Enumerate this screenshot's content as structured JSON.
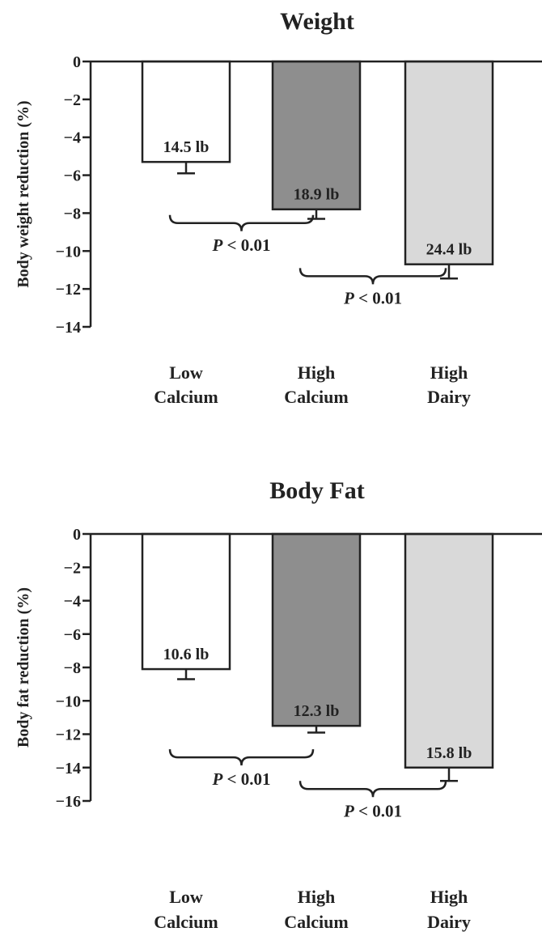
{
  "chart_data": [
    {
      "type": "bar",
      "title": "Weight",
      "ylabel": "Body weight reduction (%)",
      "ylim": [
        -14,
        0
      ],
      "yticks": [
        0,
        -2,
        -4,
        -6,
        -8,
        -10,
        -12,
        -14
      ],
      "ytick_labels": [
        "0",
        "−2",
        "−4",
        "−6",
        "−8",
        "−10",
        "−12",
        "−14"
      ],
      "categories": [
        [
          "Low",
          "Calcium"
        ],
        [
          "High",
          "Calcium"
        ],
        [
          "High",
          "Dairy"
        ]
      ],
      "values": [
        -5.3,
        -7.8,
        -10.7
      ],
      "error": [
        0.6,
        0.5,
        0.75
      ],
      "data_labels": [
        "14.5 lb",
        "18.9 lb",
        "24.4 lb"
      ],
      "colors": [
        "#ffffff",
        "#8e8e8e",
        "#d9d9d9"
      ],
      "comparisons": [
        {
          "from": 0,
          "to": 1,
          "y": -8.1,
          "p_symbol": "P",
          "p_rest": " < 0.01"
        },
        {
          "from": 1,
          "to": 2,
          "y": -10.9,
          "p_symbol": "P",
          "p_rest": " < 0.01"
        }
      ]
    },
    {
      "type": "bar",
      "title": "Body Fat",
      "ylabel": "Body fat reduction (%)",
      "ylim": [
        -16,
        0
      ],
      "yticks": [
        0,
        -2,
        -4,
        -6,
        -8,
        -10,
        -12,
        -14,
        -16
      ],
      "ytick_labels": [
        "0",
        "−2",
        "−4",
        "−6",
        "−8",
        "−10",
        "−12",
        "−14",
        "−16"
      ],
      "categories": [
        [
          "Low",
          "Calcium"
        ],
        [
          "High",
          "Calcium"
        ],
        [
          "High",
          "Dairy"
        ]
      ],
      "values": [
        -8.1,
        -11.5,
        -14.0
      ],
      "error": [
        0.6,
        0.4,
        0.8
      ],
      "data_labels": [
        "10.6 lb",
        "12.3 lb",
        "15.8 lb"
      ],
      "colors": [
        "#ffffff",
        "#8e8e8e",
        "#d9d9d9"
      ],
      "comparisons": [
        {
          "from": 0,
          "to": 1,
          "y": -12.9,
          "p_symbol": "P",
          "p_rest": " < 0.01"
        },
        {
          "from": 1,
          "to": 2,
          "y": -14.8,
          "p_symbol": "P",
          "p_rest": " < 0.01"
        }
      ]
    }
  ]
}
